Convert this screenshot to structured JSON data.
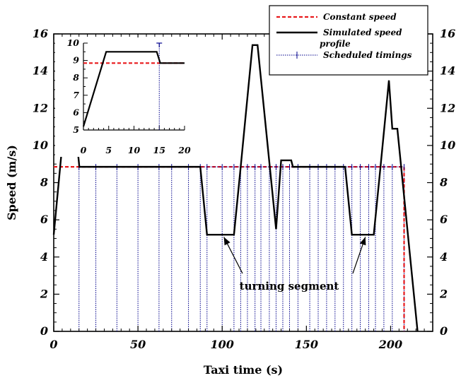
{
  "chart_data": {
    "type": "line",
    "xlabel": "Taxi time (s)",
    "ylabel": "Speed (m/s)",
    "xlim": [
      0,
      225
    ],
    "ylim": [
      0,
      16
    ],
    "xticks": [
      0,
      50,
      100,
      150,
      200
    ],
    "yticks": [
      0,
      2,
      4,
      6,
      8,
      10,
      12,
      14,
      16
    ],
    "legend": {
      "position": "top-right",
      "entries": [
        {
          "label": "Constant speed",
          "color": "#e8191c",
          "style": "dashed"
        },
        {
          "label": "Simulated speed profile",
          "color": "#000000",
          "style": "solid"
        },
        {
          "label": "Scheduled timings",
          "color": "#00008b",
          "style": "dotted-marker"
        }
      ]
    },
    "series": [
      {
        "name": "Constant speed",
        "color": "#e8191c",
        "x": [
          0,
          208,
          208
        ],
        "y": [
          8.85,
          8.85,
          0
        ]
      },
      {
        "name": "Simulated speed profile",
        "color": "#000000",
        "x": [
          0,
          4.5,
          14.5,
          15.2,
          87,
          91,
          107,
          111,
          118,
          121,
          132,
          135,
          141,
          142,
          173,
          177,
          190,
          194,
          199,
          201,
          204,
          216
        ],
        "y": [
          5.2,
          9.5,
          9.5,
          8.85,
          8.85,
          5.2,
          5.2,
          8.85,
          15.4,
          15.4,
          5.5,
          9.2,
          9.2,
          8.85,
          8.85,
          5.2,
          5.2,
          8.85,
          13.5,
          10.9,
          10.9,
          0
        ]
      },
      {
        "name": "Scheduled timings",
        "color": "#00008b",
        "y_value": 8.85,
        "x": [
          15,
          25,
          37.5,
          50,
          62.5,
          70,
          80,
          87,
          91,
          100,
          107,
          111,
          115,
          119.5,
          123,
          128,
          132,
          136,
          140,
          145,
          152,
          157,
          162,
          167,
          172,
          177,
          182,
          187,
          191,
          196,
          201,
          208
        ]
      }
    ],
    "annotations": [
      {
        "text": "turning segment",
        "arrows_to": [
          [
            101,
            5.0
          ],
          [
            185,
            5.0
          ]
        ]
      }
    ],
    "inset": {
      "type": "line",
      "xlim": [
        0,
        20
      ],
      "ylim": [
        5,
        10
      ],
      "xticks": [
        0,
        5,
        10,
        15,
        20
      ],
      "yticks": [
        5,
        6,
        7,
        8,
        9,
        10
      ],
      "series": [
        {
          "name": "Constant speed",
          "color": "#e8191c",
          "x": [
            0,
            15,
            20
          ],
          "y": [
            8.85,
            8.85,
            8.85
          ]
        },
        {
          "name": "Simulated speed profile",
          "color": "#000000",
          "x": [
            0,
            4.5,
            14.5,
            15.2,
            20
          ],
          "y": [
            5.2,
            9.5,
            9.5,
            8.85,
            8.85
          ]
        },
        {
          "name": "Scheduled timings",
          "color": "#00008b",
          "x": [
            15
          ],
          "y_value": 8.85,
          "marker_y": 10
        }
      ]
    }
  }
}
